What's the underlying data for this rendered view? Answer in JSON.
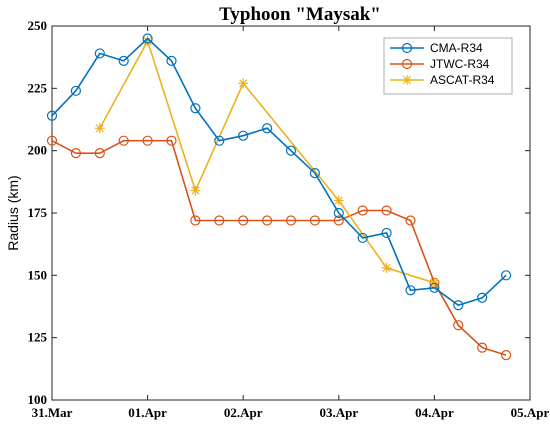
{
  "chart_data": {
    "type": "line",
    "title": "Typhoon \"Maysak\"",
    "xlabel": "",
    "ylabel": "Radius (km)",
    "xlim": [
      0,
      5
    ],
    "ylim": [
      100,
      250
    ],
    "x_tick_values": [
      0,
      1,
      2,
      3,
      4,
      5
    ],
    "x_tick_labels": [
      "31.Mar",
      "01.Apr",
      "02.Apr",
      "03.Apr",
      "04.Apr",
      "05.Apr"
    ],
    "y_ticks": [
      100,
      125,
      150,
      175,
      200,
      225,
      250
    ],
    "legend_position": "top-right",
    "grid": false,
    "series": [
      {
        "name": "CMA-R34",
        "color": "#0072BD",
        "marker": "circle",
        "x": [
          0.0,
          0.25,
          0.5,
          0.75,
          1.0,
          1.25,
          1.5,
          1.75,
          2.0,
          2.25,
          2.5,
          2.75,
          3.0,
          3.25,
          3.5,
          3.75,
          4.0,
          4.25,
          4.5,
          4.75
        ],
        "y": [
          214,
          224,
          239,
          236,
          245,
          236,
          217,
          204,
          206,
          209,
          200,
          191,
          175,
          165,
          167,
          144,
          145,
          138,
          141,
          150
        ]
      },
      {
        "name": "JTWC-R34",
        "color": "#D95319",
        "marker": "circle",
        "x": [
          0.0,
          0.25,
          0.5,
          0.75,
          1.0,
          1.25,
          1.5,
          1.75,
          2.0,
          2.25,
          2.5,
          2.75,
          3.0,
          3.25,
          3.5,
          3.75,
          4.0,
          4.25,
          4.5,
          4.75
        ],
        "y": [
          204,
          199,
          199,
          204,
          204,
          204,
          172,
          172,
          172,
          172,
          172,
          172,
          172,
          176,
          176,
          172,
          147,
          130,
          121,
          118
        ]
      },
      {
        "name": "ASCAT-R34",
        "color": "#EDB120",
        "marker": "star",
        "x": [
          0.5,
          1.0,
          1.5,
          2.0,
          3.0,
          3.5,
          4.0
        ],
        "y": [
          209,
          244,
          184,
          227,
          180,
          153,
          147
        ]
      }
    ]
  }
}
